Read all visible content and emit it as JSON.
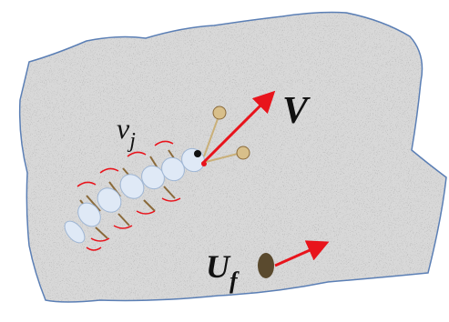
{
  "labels": {
    "v": "V",
    "small_v": "v",
    "small_v_sub": "j",
    "u": "U",
    "u_sub": "f"
  }
}
